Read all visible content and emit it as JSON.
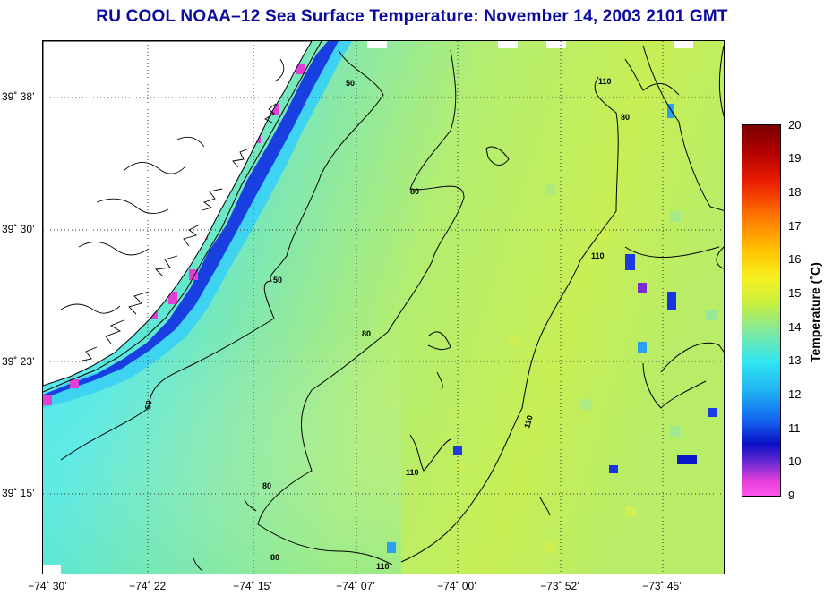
{
  "title": "RU COOL  NOAA–12  Sea Surface Temperature:  November 14, 2003 2101 GMT",
  "lat_ticks": [
    "39˚ 38’",
    "39˚ 30’",
    "39˚ 23’",
    "39˚ 15’"
  ],
  "lon_ticks": [
    "−74˚ 30’",
    "−74˚ 22’",
    "−74˚ 15’",
    "−74˚ 07’",
    "−74˚ 00’",
    "−73˚ 52’",
    "−73˚ 45’"
  ],
  "contour_labels": [
    "50",
    "50",
    "50",
    "80",
    "80",
    "80",
    "80",
    "110",
    "110",
    "110",
    "110",
    "110",
    "80",
    "110"
  ],
  "colorbar": {
    "title": "Temperature (˚C)",
    "ticks": [
      "20",
      "19",
      "18",
      "17",
      "16",
      "15",
      "14",
      "13",
      "12",
      "11",
      "10",
      "9"
    ]
  },
  "colors": {
    "title": "#0b0b9e",
    "land": "#ffffff",
    "water_coastal": "#2ee3ef",
    "water_mid": "#7ce3a6",
    "water_offshore": "#c4ee5c",
    "cold_anomaly": "#1d3ae0",
    "very_cold": "#e23fd6"
  }
}
